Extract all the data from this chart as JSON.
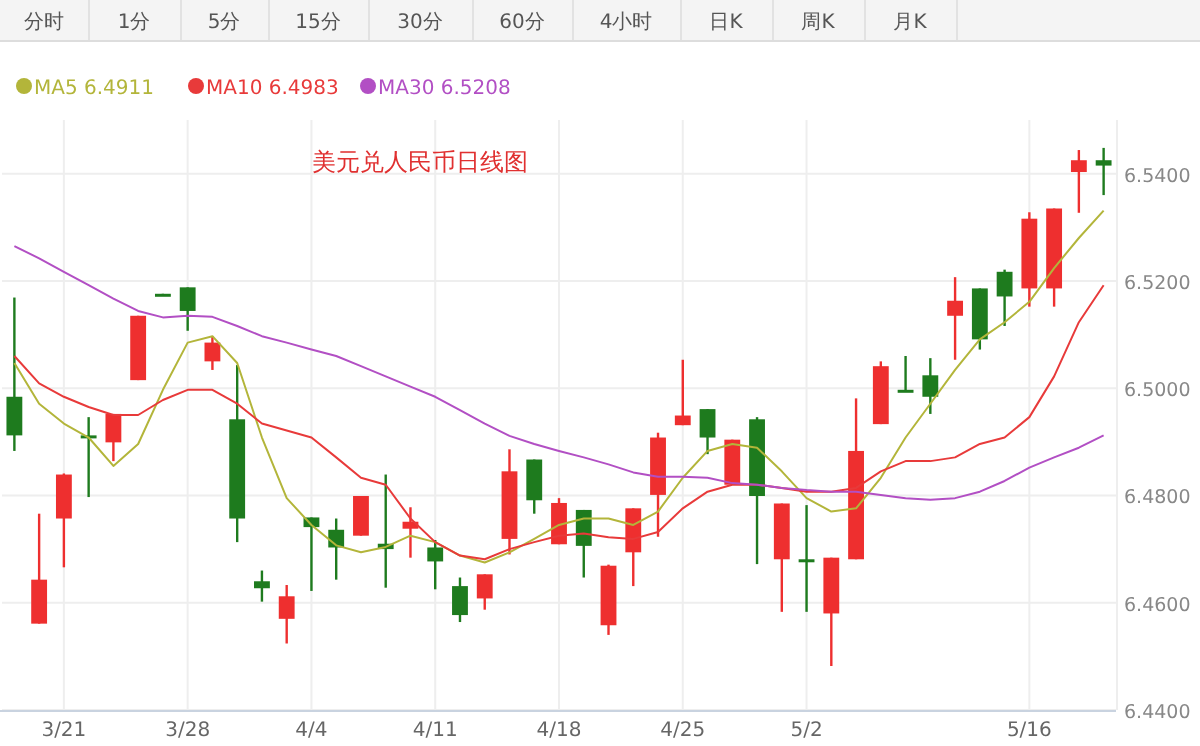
{
  "chart_data": {
    "type": "candlestick",
    "title": "美元兑人民币日线图",
    "annotations": [
      "分时",
      "1分",
      "5分",
      "15分",
      "30分",
      "60分",
      "4小时",
      "日K",
      "周K",
      "月K"
    ],
    "categories": [
      null,
      null,
      "3/21",
      null,
      null,
      null,
      null,
      "3/28",
      null,
      null,
      null,
      null,
      "4/4",
      null,
      null,
      null,
      null,
      "4/11",
      null,
      null,
      null,
      null,
      "4/18",
      null,
      null,
      null,
      null,
      "4/25",
      null,
      null,
      null,
      null,
      "5/2",
      null,
      null,
      null,
      null,
      null,
      null,
      null,
      null,
      "5/16",
      null,
      null,
      null
    ],
    "ohlc": [
      [
        6.4984,
        6.5169,
        6.4883,
        6.4912
      ],
      [
        6.4561,
        6.4766,
        6.4561,
        6.4643
      ],
      [
        6.4757,
        6.4841,
        6.4666,
        6.4839
      ],
      [
        6.4912,
        6.4946,
        6.4797,
        6.491
      ],
      [
        6.4899,
        6.4952,
        6.4864,
        6.4952
      ],
      [
        6.5015,
        6.5135,
        6.5015,
        6.5135
      ],
      [
        6.5176,
        6.5176,
        6.5174,
        6.5174
      ],
      [
        6.5188,
        6.5188,
        6.5107,
        6.5144
      ],
      [
        6.505,
        6.5097,
        6.5034,
        6.5085
      ],
      [
        6.4942,
        6.5043,
        6.4713,
        6.4757
      ],
      [
        6.464,
        6.466,
        6.4602,
        6.4627
      ],
      [
        6.457,
        6.4633,
        6.4524,
        6.4612
      ],
      [
        6.4759,
        6.4759,
        6.4622,
        6.4741
      ],
      [
        6.4736,
        6.4757,
        6.4643,
        6.4703
      ],
      [
        6.4725,
        6.4799,
        6.4725,
        6.4799
      ],
      [
        6.471,
        6.4839,
        6.4628,
        6.47
      ],
      [
        6.4738,
        6.4778,
        6.4684,
        6.4751
      ],
      [
        6.4703,
        6.4717,
        6.4625,
        6.4677
      ],
      [
        6.4631,
        6.4647,
        6.4564,
        6.4577
      ],
      [
        6.4608,
        6.4653,
        6.4587,
        6.4653
      ],
      [
        6.4719,
        6.4886,
        6.469,
        6.4845
      ],
      [
        6.4867,
        6.4867,
        6.4766,
        6.4791
      ],
      [
        6.4709,
        6.4795,
        6.4709,
        6.4786
      ],
      [
        6.4773,
        6.4773,
        6.4647,
        6.4706
      ],
      [
        6.4558,
        6.4671,
        6.454,
        6.4669
      ],
      [
        6.4694,
        6.4776,
        6.4631,
        6.4776
      ],
      [
        6.4801,
        6.4917,
        6.4723,
        6.4908
      ],
      [
        6.4931,
        6.5053,
        6.4931,
        6.4949
      ],
      [
        6.4961,
        6.4961,
        6.4877,
        6.4908
      ],
      [
        6.482,
        6.4904,
        6.482,
        6.4904
      ],
      [
        6.4942,
        6.4946,
        6.4672,
        6.4799
      ],
      [
        6.4681,
        6.4785,
        6.4583,
        6.4785
      ],
      [
        6.4681,
        6.4782,
        6.4583,
        6.4679
      ],
      [
        6.458,
        6.4684,
        6.4482,
        6.4684
      ],
      [
        6.4681,
        6.4981,
        6.4681,
        6.4883
      ],
      [
        6.4933,
        6.505,
        6.4933,
        6.5041
      ],
      [
        6.4997,
        6.506,
        6.4994,
        6.4994
      ],
      [
        6.5024,
        6.5056,
        6.4952,
        6.4984
      ],
      [
        6.5135,
        6.5207,
        6.5053,
        6.5163
      ],
      [
        6.5186,
        6.5186,
        6.5072,
        6.5091
      ],
      [
        6.5217,
        6.5221,
        6.5116,
        6.5171
      ],
      [
        6.5186,
        6.5328,
        6.5152,
        6.5316
      ],
      [
        6.5186,
        6.5335,
        6.5152,
        6.5335
      ],
      [
        6.5403,
        6.5444,
        6.5327,
        6.5425
      ],
      [
        6.5425,
        6.5448,
        6.536,
        6.5415
      ]
    ],
    "colors": [
      "#1e7b1e",
      "#ee2f2f",
      "#ee2f2f",
      "#1e7b1e",
      "#ee2f2f",
      "#ee2f2f",
      "#1e7b1e",
      "#1e7b1e",
      "#ee2f2f",
      "#1e7b1e",
      "#1e7b1e",
      "#ee2f2f",
      "#1e7b1e",
      "#1e7b1e",
      "#ee2f2f",
      "#1e7b1e",
      "#ee2f2f",
      "#1e7b1e",
      "#1e7b1e",
      "#ee2f2f",
      "#ee2f2f",
      "#1e7b1e",
      "#ee2f2f",
      "#1e7b1e",
      "#ee2f2f",
      "#ee2f2f",
      "#ee2f2f",
      "#ee2f2f",
      "#1e7b1e",
      "#ee2f2f",
      "#1e7b1e",
      "#ee2f2f",
      "#1e7b1e",
      "#ee2f2f",
      "#ee2f2f",
      "#ee2f2f",
      "#1e7b1e",
      "#1e7b1e",
      "#ee2f2f",
      "#1e7b1e",
      "#1e7b1e",
      "#ee2f2f",
      "#ee2f2f",
      "#ee2f2f",
      "#1e7b1e"
    ],
    "series": [
      {
        "name": "MA5 6.4911",
        "type": "line",
        "color": "#b3b53a",
        "values": [
          6.5047,
          6.4971,
          6.4934,
          6.4908,
          6.4855,
          6.4896,
          6.4997,
          6.5085,
          6.5097,
          6.5047,
          6.4908,
          6.4795,
          6.4745,
          6.4707,
          6.4694,
          6.4704,
          6.4725,
          6.4713,
          6.4688,
          6.4675,
          6.4694,
          6.4719,
          6.4745,
          6.4757,
          6.4757,
          6.4745,
          6.477,
          6.4833,
          6.4883,
          6.4896,
          6.4889,
          6.4845,
          6.4795,
          6.477,
          6.4776,
          6.4833,
          6.4908,
          6.4971,
          6.5034,
          6.5091,
          6.5123,
          6.5161,
          6.5224,
          6.528,
          6.5331
        ]
      },
      {
        "name": "MA10 6.4983",
        "type": "line",
        "color": "#e83a3a",
        "values": [
          6.506,
          6.5009,
          6.4984,
          6.4965,
          6.495,
          6.495,
          6.4978,
          6.4997,
          6.4997,
          6.4971,
          6.4934,
          6.4921,
          6.4908,
          6.4871,
          6.4833,
          6.482,
          6.4757,
          6.4713,
          6.4688,
          6.4681,
          6.47,
          6.4713,
          6.4725,
          6.4729,
          6.4722,
          6.4719,
          6.4732,
          6.4776,
          6.4807,
          6.482,
          6.482,
          6.4814,
          6.4807,
          6.4807,
          6.4814,
          6.4845,
          6.4864,
          6.4864,
          6.4871,
          6.4896,
          6.4908,
          6.4946,
          6.5022,
          6.5123,
          6.5192
        ]
      },
      {
        "name": "MA30 6.5208",
        "type": "line",
        "color": "#b24fc4",
        "values": [
          6.5265,
          6.5242,
          6.5217,
          6.5192,
          6.5167,
          6.5144,
          6.5132,
          6.5135,
          6.5133,
          6.5116,
          6.5097,
          6.5085,
          6.5072,
          6.506,
          6.5041,
          6.5022,
          6.5003,
          6.4984,
          6.4959,
          6.4934,
          6.4911,
          6.4896,
          6.4883,
          6.4871,
          6.4858,
          6.4843,
          6.4835,
          6.4835,
          6.4833,
          6.4823,
          6.482,
          6.4814,
          6.481,
          6.4807,
          6.4807,
          6.4801,
          6.4795,
          6.4792,
          6.4795,
          6.4807,
          6.4827,
          6.4852,
          6.4871,
          6.4889,
          6.4912
        ]
      }
    ],
    "ylim": [
      6.44,
      6.55
    ],
    "yticks": [
      {
        "value": 6.44,
        "label": "6.4400"
      },
      {
        "value": 6.46,
        "label": "6.4600"
      },
      {
        "value": 6.48,
        "label": "6.4800"
      },
      {
        "value": 6.5,
        "label": "6.5000"
      },
      {
        "value": 6.52,
        "label": "6.5200"
      },
      {
        "value": 6.54,
        "label": "6.5400"
      }
    ],
    "grid": true,
    "legend": "top left"
  }
}
